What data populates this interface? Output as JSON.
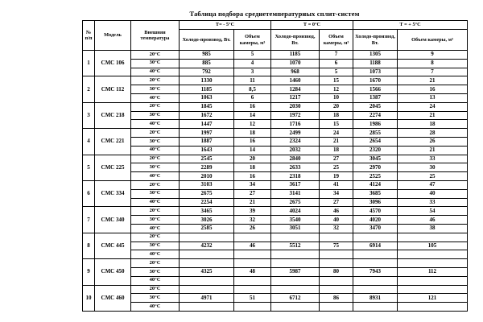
{
  "title": "Таблица подбора среднетемпературных сплит-систем",
  "table": {
    "headers": {
      "num": "№ п/п",
      "model": "Модель",
      "ext_temp": "Внешняя температура",
      "temp_groups": [
        "Т= - 5°С",
        "Т = 0°С",
        "Т = + 5°С"
      ],
      "cold_capacity": "Холодо-производ, Вт.",
      "chamber_volume": "Объем камеры, м³"
    },
    "rows": [
      {
        "num": "1",
        "model": "СМС 106",
        "temps": [
          {
            "t": "20°С",
            "values": [
              "985",
              "5",
              "1185",
              "7",
              "1305",
              "9"
            ]
          },
          {
            "t": "30°С",
            "values": [
              "885",
              "4",
              "1070",
              "6",
              "1188",
              "8"
            ]
          },
          {
            "t": "40°С",
            "values": [
              "792",
              "3",
              "968",
              "5",
              "1073",
              "7"
            ]
          }
        ]
      },
      {
        "num": "2",
        "model": "СМС 112",
        "temps": [
          {
            "t": "20°С",
            "values": [
              "1330",
              "11",
              "1460",
              "15",
              "1670",
              "21"
            ]
          },
          {
            "t": "30°С",
            "values": [
              "1185",
              "8,5",
              "1284",
              "12",
              "1566",
              "16"
            ]
          },
          {
            "t": "40°С",
            "values": [
              "1063",
              "6",
              "1217",
              "10",
              "1387",
              "13"
            ]
          }
        ]
      },
      {
        "num": "3",
        "model": "СМС 218",
        "temps": [
          {
            "t": "20°С",
            "values": [
              "1845",
              "16",
              "2030",
              "20",
              "2045",
              "24"
            ]
          },
          {
            "t": "30°С",
            "values": [
              "1672",
              "14",
              "1972",
              "18",
              "2274",
              "21"
            ]
          },
          {
            "t": "40°С",
            "values": [
              "1447",
              "12",
              "1716",
              "15",
              "1986",
              "18"
            ]
          }
        ]
      },
      {
        "num": "4",
        "model": "СМС 221",
        "temps": [
          {
            "t": "20°С",
            "values": [
              "1997",
              "18",
              "2499",
              "24",
              "2855",
              "28"
            ]
          },
          {
            "t": "30°С",
            "values": [
              "1887",
              "16",
              "2324",
              "21",
              "2654",
              "26"
            ]
          },
          {
            "t": "40°С",
            "values": [
              "1643",
              "14",
              "2032",
              "18",
              "2320",
              "21"
            ]
          }
        ]
      },
      {
        "num": "5",
        "model": "СМС 225",
        "temps": [
          {
            "t": "20°С",
            "values": [
              "2545",
              "20",
              "2840",
              "27",
              "3045",
              "33"
            ]
          },
          {
            "t": "30°С",
            "values": [
              "2289",
              "18",
              "2633",
              "25",
              "2970",
              "30"
            ]
          },
          {
            "t": "40°С",
            "values": [
              "2010",
              "16",
              "2318",
              "19",
              "2525",
              "25"
            ]
          }
        ]
      },
      {
        "num": "6",
        "model": "СМС 334",
        "temps": [
          {
            "t": "20°С",
            "values": [
              "3103",
              "34",
              "3617",
              "41",
              "4124",
              "47"
            ]
          },
          {
            "t": "30°С",
            "values": [
              "2675",
              "27",
              "3141",
              "34",
              "3685",
              "40"
            ]
          },
          {
            "t": "40°С",
            "values": [
              "2254",
              "21",
              "2675",
              "27",
              "3096",
              "33"
            ]
          }
        ]
      },
      {
        "num": "7",
        "model": "СМС 340",
        "temps": [
          {
            "t": "20°С",
            "values": [
              "3465",
              "39",
              "4024",
              "46",
              "4570",
              "54"
            ]
          },
          {
            "t": "30°С",
            "values": [
              "3026",
              "32",
              "3540",
              "40",
              "4020",
              "46"
            ]
          },
          {
            "t": "40°С",
            "values": [
              "2585",
              "26",
              "3051",
              "32",
              "3470",
              "38"
            ]
          }
        ]
      },
      {
        "num": "8",
        "model": "СМС 445",
        "temps": [
          {
            "t": "20°С",
            "values": [
              "",
              "",
              "",
              "",
              "",
              ""
            ]
          },
          {
            "t": "30°С",
            "values": [
              "4232",
              "46",
              "5512",
              "75",
              "6914",
              "105"
            ]
          },
          {
            "t": "40°С",
            "values": [
              "",
              "",
              "",
              "",
              "",
              ""
            ]
          }
        ]
      },
      {
        "num": "9",
        "model": "СМС 450",
        "temps": [
          {
            "t": "20°С",
            "values": [
              "",
              "",
              "",
              "",
              "",
              ""
            ]
          },
          {
            "t": "30°С",
            "values": [
              "4325",
              "48",
              "5987",
              "80",
              "7943",
              "112"
            ]
          },
          {
            "t": "40°С",
            "values": [
              "",
              "",
              "",
              "",
              "",
              ""
            ]
          }
        ]
      },
      {
        "num": "10",
        "model": "СМС 460",
        "temps": [
          {
            "t": "20°С",
            "values": [
              "",
              "",
              "",
              "",
              "",
              ""
            ]
          },
          {
            "t": "30°С",
            "values": [
              "4971",
              "51",
              "6712",
              "86",
              "8931",
              "121"
            ]
          },
          {
            "t": "40°С",
            "values": [
              "",
              "",
              "",
              "",
              "",
              ""
            ]
          }
        ]
      }
    ]
  }
}
